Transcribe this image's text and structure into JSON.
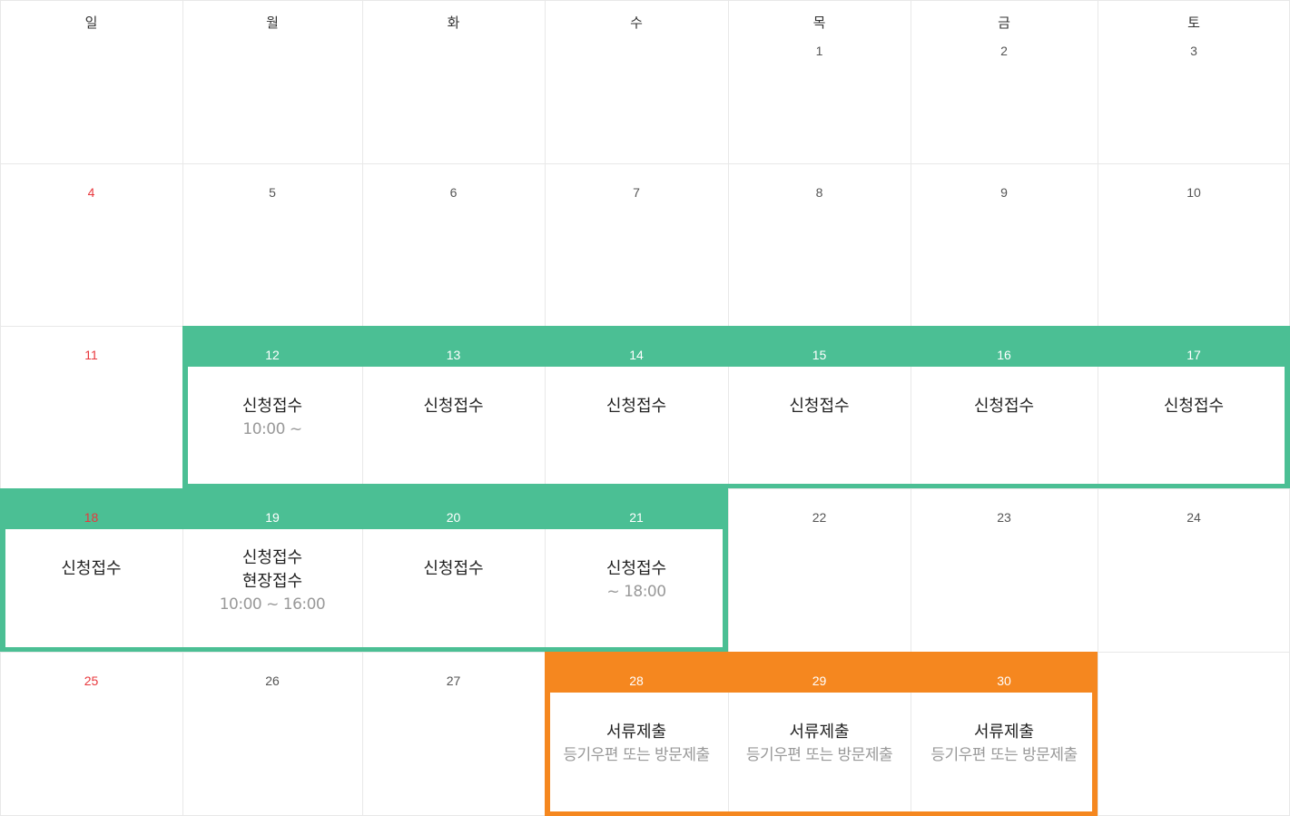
{
  "calendar": {
    "weekdays": [
      "일",
      "월",
      "화",
      "수",
      "목",
      "금",
      "토"
    ],
    "colors": {
      "green": "#4bbf94",
      "orange": "#f5871f",
      "sunday": "#e8383d"
    },
    "weeks": [
      [
        null,
        null,
        null,
        null,
        "1",
        "2",
        "3"
      ],
      [
        "4",
        "5",
        "6",
        "7",
        "8",
        "9",
        "10"
      ],
      [
        "11",
        "12",
        "13",
        "14",
        "15",
        "16",
        "17"
      ],
      [
        "18",
        "19",
        "20",
        "21",
        "22",
        "23",
        "24"
      ],
      [
        "25",
        "26",
        "27",
        "28",
        "29",
        "30",
        null
      ]
    ],
    "events": {
      "12": {
        "lines": [
          "신청접수"
        ],
        "sub": "10:00 ~"
      },
      "13": {
        "lines": [
          "신청접수"
        ]
      },
      "14": {
        "lines": [
          "신청접수"
        ]
      },
      "15": {
        "lines": [
          "신청접수"
        ]
      },
      "16": {
        "lines": [
          "신청접수"
        ]
      },
      "17": {
        "lines": [
          "신청접수"
        ]
      },
      "18": {
        "lines": [
          "신청접수"
        ]
      },
      "19": {
        "lines": [
          "신청접수",
          "현장접수"
        ],
        "sub": "10:00 ~ 16:00"
      },
      "20": {
        "lines": [
          "신청접수"
        ]
      },
      "21": {
        "lines": [
          "신청접수"
        ],
        "sub": "~ 18:00"
      },
      "28": {
        "lines": [
          "서류제출"
        ],
        "sub": "등기우편 또는 방문제출"
      },
      "29": {
        "lines": [
          "서류제출"
        ],
        "sub": "등기우편 또는 방문제출"
      },
      "30": {
        "lines": [
          "서류제출"
        ],
        "sub": "등기우편 또는 방문제출"
      }
    }
  }
}
